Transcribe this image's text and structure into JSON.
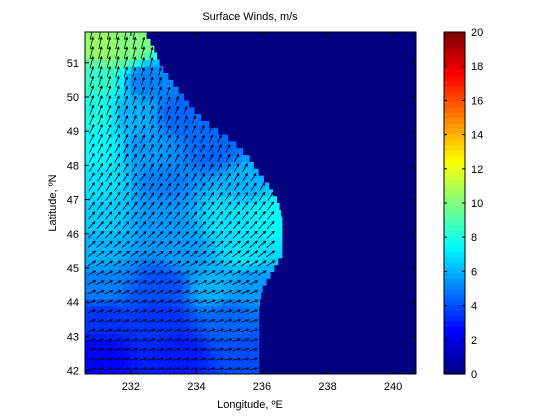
{
  "chart_data": {
    "type": "heatmap",
    "title": "Surface Winds, m/s",
    "xlabel": "Longitude, ºE",
    "ylabel": "Latitude, ºN",
    "xlim": [
      230.6,
      240.7
    ],
    "ylim": [
      41.9,
      51.9
    ],
    "x_ticks": [
      232,
      234,
      236,
      238,
      240
    ],
    "y_ticks": [
      42,
      43,
      44,
      45,
      46,
      47,
      48,
      49,
      50,
      51
    ],
    "colorbar": {
      "colormap": "jet",
      "clim": [
        0,
        20
      ],
      "ticks": [
        0,
        2,
        4,
        6,
        8,
        10,
        12,
        14,
        16,
        18,
        20
      ]
    },
    "background_value": 0,
    "ocean_boundary": [
      [
        51.9,
        232.4
      ],
      [
        51.4,
        232.7
      ],
      [
        50.9,
        232.9
      ],
      [
        50.5,
        233.2
      ],
      [
        50.0,
        233.6
      ],
      [
        49.5,
        234.0
      ],
      [
        49.1,
        234.5
      ],
      [
        48.7,
        235.1
      ],
      [
        48.2,
        235.6
      ],
      [
        47.9,
        235.8
      ],
      [
        47.4,
        236.2
      ],
      [
        46.9,
        236.5
      ],
      [
        46.4,
        236.6
      ],
      [
        45.9,
        236.6
      ],
      [
        45.4,
        236.6
      ],
      [
        44.9,
        236.3
      ],
      [
        44.4,
        236.0
      ],
      [
        43.9,
        235.9
      ],
      [
        43.4,
        235.9
      ],
      [
        42.9,
        235.9
      ],
      [
        42.4,
        235.9
      ],
      [
        41.9,
        235.9
      ]
    ],
    "speed_field": {
      "description": "Surface wind speed samples (lat, lon, m/s); field interpolated between samples",
      "samples": [
        [
          51.5,
          231.2,
          10.5
        ],
        [
          51.5,
          232.0,
          10.0
        ],
        [
          50.5,
          231.0,
          8.5
        ],
        [
          50.5,
          232.5,
          5.0
        ],
        [
          49.5,
          231.0,
          8.0
        ],
        [
          49.5,
          232.0,
          6.0
        ],
        [
          49.5,
          233.5,
          4.5
        ],
        [
          48.5,
          231.0,
          7.5
        ],
        [
          48.5,
          232.5,
          5.5
        ],
        [
          48.5,
          234.5,
          4.5
        ],
        [
          47.5,
          231.0,
          7.0
        ],
        [
          47.5,
          233.0,
          5.0
        ],
        [
          47.5,
          235.5,
          6.0
        ],
        [
          46.5,
          231.0,
          6.5
        ],
        [
          46.5,
          233.0,
          5.5
        ],
        [
          46.5,
          235.0,
          7.0
        ],
        [
          46.5,
          236.3,
          7.5
        ],
        [
          45.5,
          231.0,
          6.0
        ],
        [
          45.5,
          233.5,
          5.5
        ],
        [
          45.5,
          235.5,
          7.0
        ],
        [
          44.5,
          231.0,
          5.0
        ],
        [
          44.5,
          233.0,
          4.0
        ],
        [
          44.5,
          234.5,
          6.0
        ],
        [
          44.5,
          235.7,
          5.5
        ],
        [
          43.5,
          231.0,
          3.5
        ],
        [
          43.5,
          233.0,
          3.5
        ],
        [
          43.5,
          235.0,
          4.5
        ],
        [
          42.5,
          231.0,
          2.5
        ],
        [
          42.5,
          233.5,
          3.0
        ],
        [
          42.5,
          235.5,
          4.0
        ]
      ]
    },
    "wind_vectors": {
      "description": "Direction of wind arrows (degrees from east, counter-clockwise) by latitude band",
      "direction_deg_by_latitude": [
        [
          42.0,
          10
        ],
        [
          43.0,
          15
        ],
        [
          44.0,
          20
        ],
        [
          45.0,
          30
        ],
        [
          46.0,
          45
        ],
        [
          47.0,
          55
        ],
        [
          48.0,
          60
        ],
        [
          49.0,
          65
        ],
        [
          50.0,
          70
        ],
        [
          51.0,
          75
        ],
        [
          52.0,
          78
        ]
      ]
    }
  }
}
